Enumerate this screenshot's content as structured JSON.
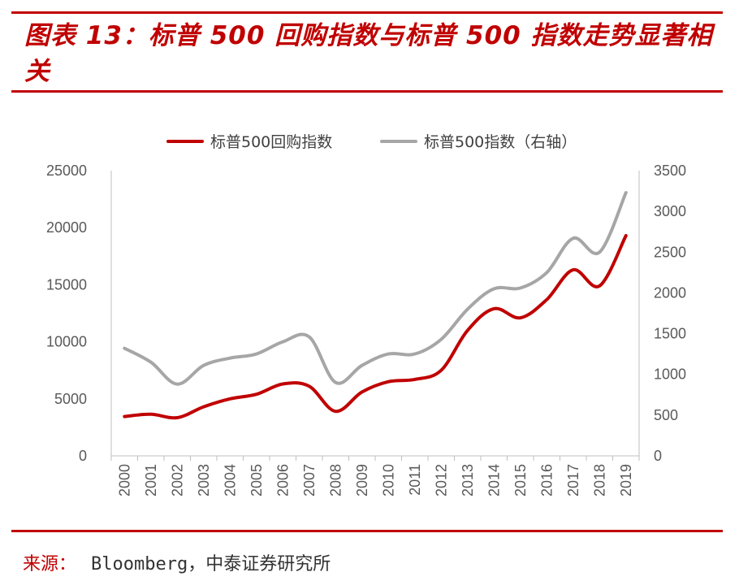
{
  "header": {
    "title": "图表 13：标普 500 回购指数与标普 500 指数走势显著相关"
  },
  "footer": {
    "source_label": "来源：",
    "source_value": "Bloomberg，中泰证券研究所"
  },
  "colors": {
    "accent": "#c00000",
    "series_primary": "#c00000",
    "series_secondary": "#a6a6a6"
  },
  "chart_data": {
    "type": "line",
    "title": "",
    "xlabel": "",
    "ylabel": "",
    "categories": [
      "2000",
      "2001",
      "2002",
      "2003",
      "2004",
      "2005",
      "2006",
      "2007",
      "2008",
      "2009",
      "2010",
      "2011",
      "2012",
      "2013",
      "2014",
      "2015",
      "2016",
      "2017",
      "2018",
      "2019"
    ],
    "ylim": [
      0,
      25000
    ],
    "yticks": [
      0,
      5000,
      10000,
      15000,
      20000,
      25000
    ],
    "y2lim": [
      0,
      3500
    ],
    "y2ticks": [
      0,
      500,
      1000,
      1500,
      2000,
      2500,
      3000,
      3500
    ],
    "legend_position": "top",
    "series": [
      {
        "name": "标普500回购指数",
        "axis": "left",
        "color": "#c00000",
        "values": [
          3450,
          3650,
          3350,
          4300,
          5000,
          5400,
          6300,
          6100,
          3900,
          5600,
          6500,
          6700,
          7500,
          11000,
          12900,
          12100,
          13700,
          16300,
          14900,
          19300
        ]
      },
      {
        "name": "标普500指数（右轴）",
        "axis": "right",
        "color": "#a6a6a6",
        "values": [
          1320,
          1150,
          880,
          1110,
          1200,
          1250,
          1400,
          1460,
          900,
          1110,
          1250,
          1250,
          1430,
          1800,
          2050,
          2060,
          2250,
          2670,
          2500,
          3230
        ]
      }
    ]
  }
}
